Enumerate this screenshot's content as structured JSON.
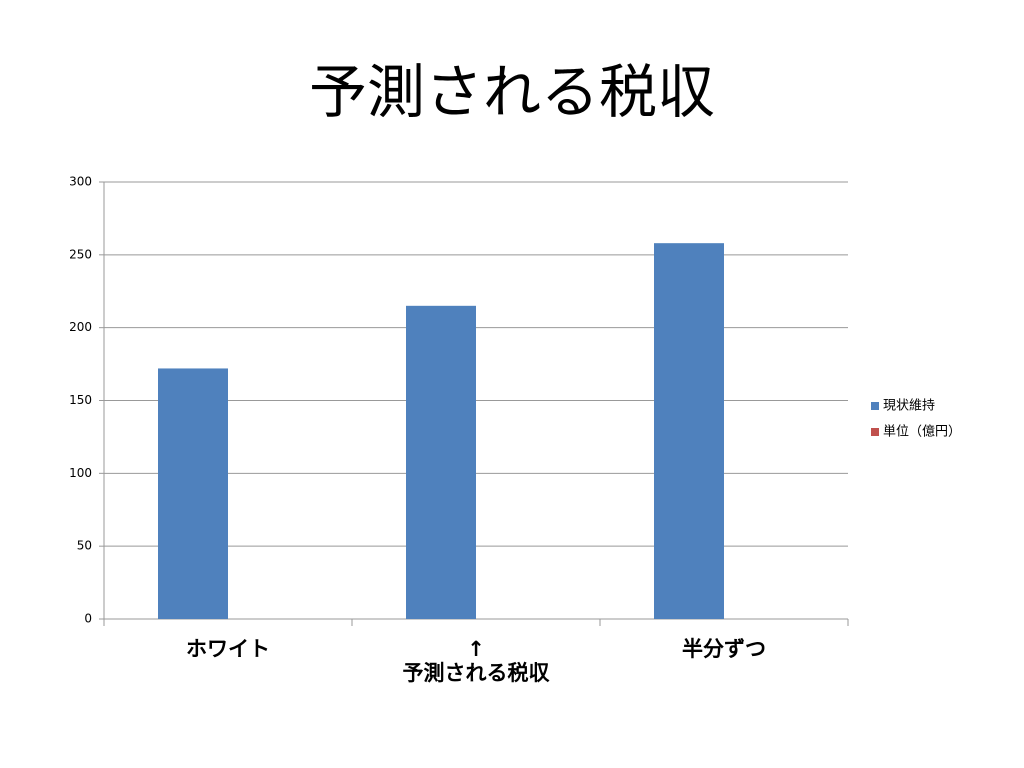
{
  "chart_data": {
    "type": "bar",
    "title": "予測される税収",
    "categories": [
      "ホワイト",
      "↑\n予測される税収",
      "半分ずつ"
    ],
    "series": [
      {
        "name": "現状維持",
        "color": "#4f81bd",
        "values": [
          172,
          215,
          258
        ]
      },
      {
        "name": "単位（億円）",
        "color": "#c0504d",
        "values": [
          null,
          null,
          null
        ]
      }
    ],
    "ylim": [
      0,
      300
    ],
    "yticks": [
      0,
      50,
      100,
      150,
      200,
      250,
      300
    ],
    "grid": true,
    "legend": "right"
  }
}
